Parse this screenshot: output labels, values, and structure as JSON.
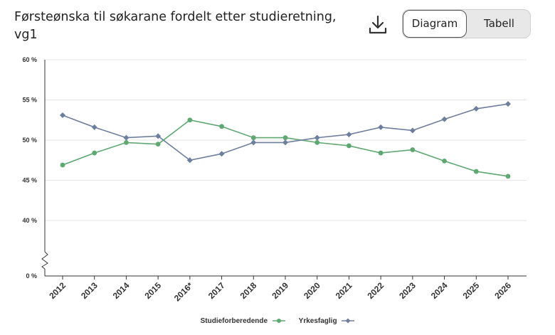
{
  "header": {
    "title": "Førsteønska til søkarane fordelt etter studieretning, vg1",
    "download_icon": "download-icon",
    "toggle_diagram": "Diagram",
    "toggle_table": "Tabell"
  },
  "chart_data": {
    "type": "line",
    "categories": [
      "2012",
      "2013",
      "2014",
      "2015",
      "2016*",
      "2017",
      "2018",
      "2019",
      "2020",
      "2021",
      "2022",
      "2023",
      "2024",
      "2025",
      "2026"
    ],
    "series": [
      {
        "name": "Studieforberedende",
        "color": "#5fa872",
        "values": [
          46.9,
          48.4,
          49.7,
          49.5,
          52.5,
          51.7,
          50.3,
          50.3,
          49.7,
          49.3,
          48.4,
          48.8,
          47.4,
          46.1,
          45.5
        ]
      },
      {
        "name": "Yrkesfaglig",
        "color": "#6e7f9e",
        "values": [
          53.1,
          51.6,
          50.3,
          50.5,
          47.5,
          48.3,
          49.7,
          49.7,
          50.3,
          50.7,
          51.6,
          51.2,
          52.6,
          53.9,
          54.5
        ]
      }
    ],
    "yticks": [
      {
        "value": 60,
        "label": "60 %"
      },
      {
        "value": 55,
        "label": "55 %"
      },
      {
        "value": 50,
        "label": "50 %"
      },
      {
        "value": 45,
        "label": "45 %"
      },
      {
        "value": 40,
        "label": "40 %"
      },
      {
        "value": 0,
        "label": "0 %"
      }
    ],
    "y_axis_break": true,
    "ylim": [
      0,
      60
    ],
    "grid": true,
    "legend_position": "bottom-center"
  }
}
